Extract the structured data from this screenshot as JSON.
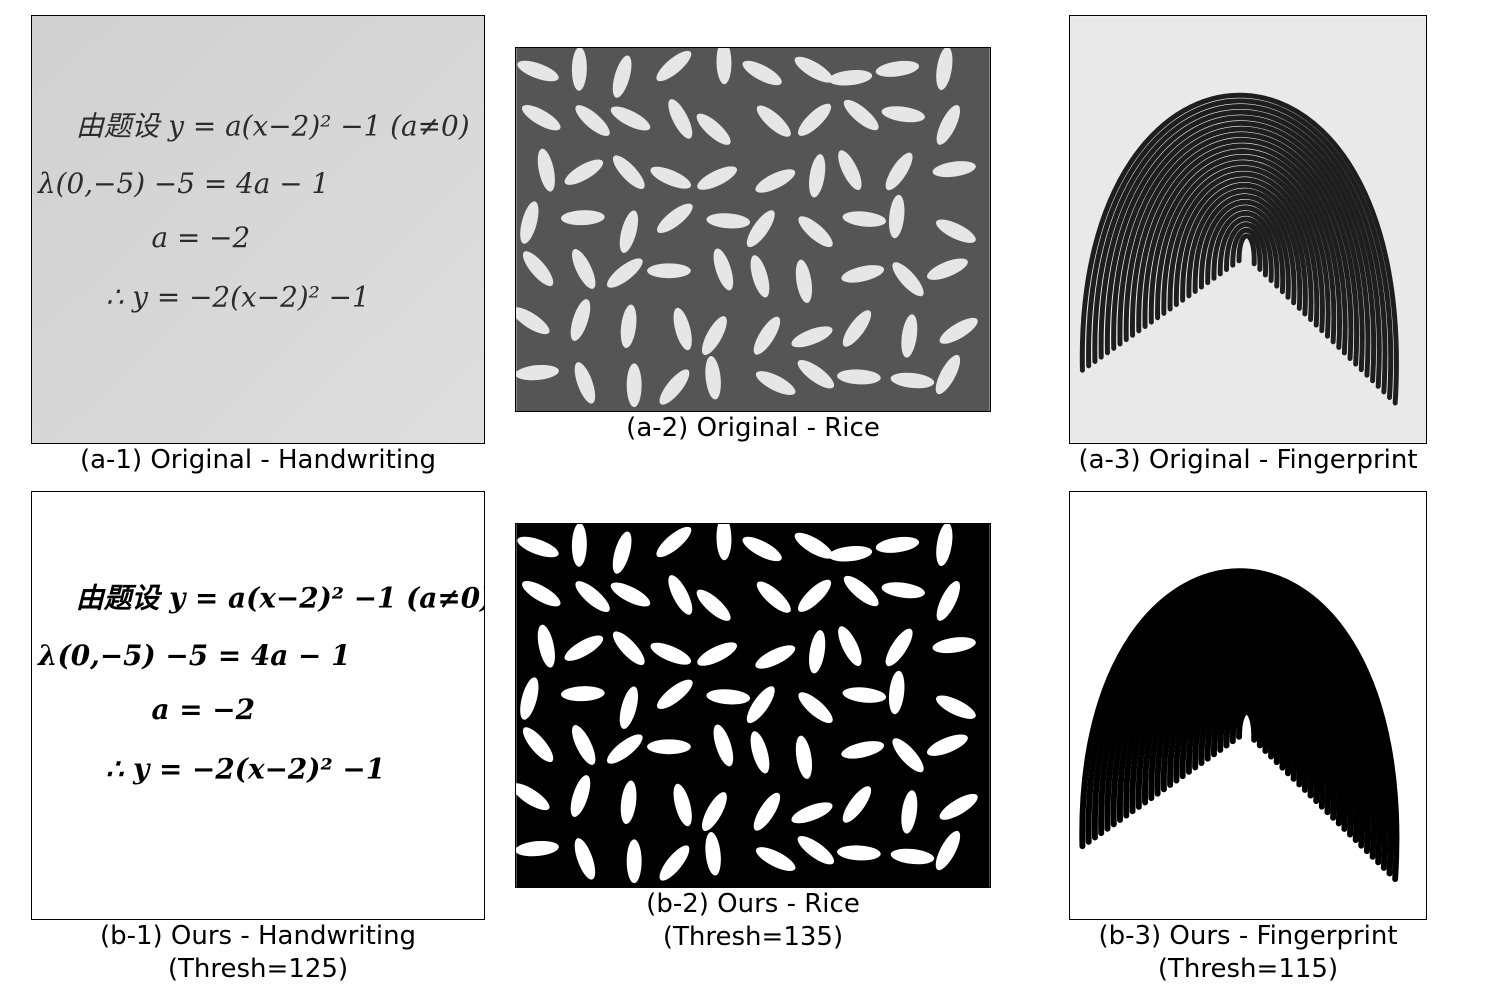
{
  "figure": {
    "panels": [
      {
        "id": "a-1",
        "caption": "(a-1) Original - Handwriting",
        "caption2": ""
      },
      {
        "id": "a-2",
        "caption": "(a-2) Original - Rice",
        "caption2": ""
      },
      {
        "id": "a-3",
        "caption": "(a-3) Original - Fingerprint",
        "caption2": ""
      },
      {
        "id": "b-1",
        "caption": "(b-1) Ours - Handwriting",
        "caption2": "(Thresh=125)",
        "threshold": 125
      },
      {
        "id": "b-2",
        "caption": "(b-2) Ours - Rice",
        "caption2": "(Thresh=135)",
        "threshold": 135
      },
      {
        "id": "b-3",
        "caption": "(b-3) Ours - Fingerprint",
        "caption2": "(Thresh=115)",
        "threshold": 115
      }
    ]
  },
  "handwriting": {
    "line1": "由题设 y = a(x−2)² −1 (a≠0)",
    "line2": "λ(0,−5)  −5 = 4a − 1",
    "line3": "a = −2",
    "line4": "∴ y = −2(x−2)² −1"
  },
  "colors": {
    "paper_gray": "#d4d4d4",
    "ink_gray": "#2b2b2b",
    "rice_bg_gray": "#555555",
    "rice_grain_gray": "#e6e6e6",
    "fingerprint_bg": "#e9e9e9",
    "fingerprint_ridge_gray": "#1e1e1e",
    "binary_black": "#000000",
    "binary_white": "#ffffff"
  }
}
